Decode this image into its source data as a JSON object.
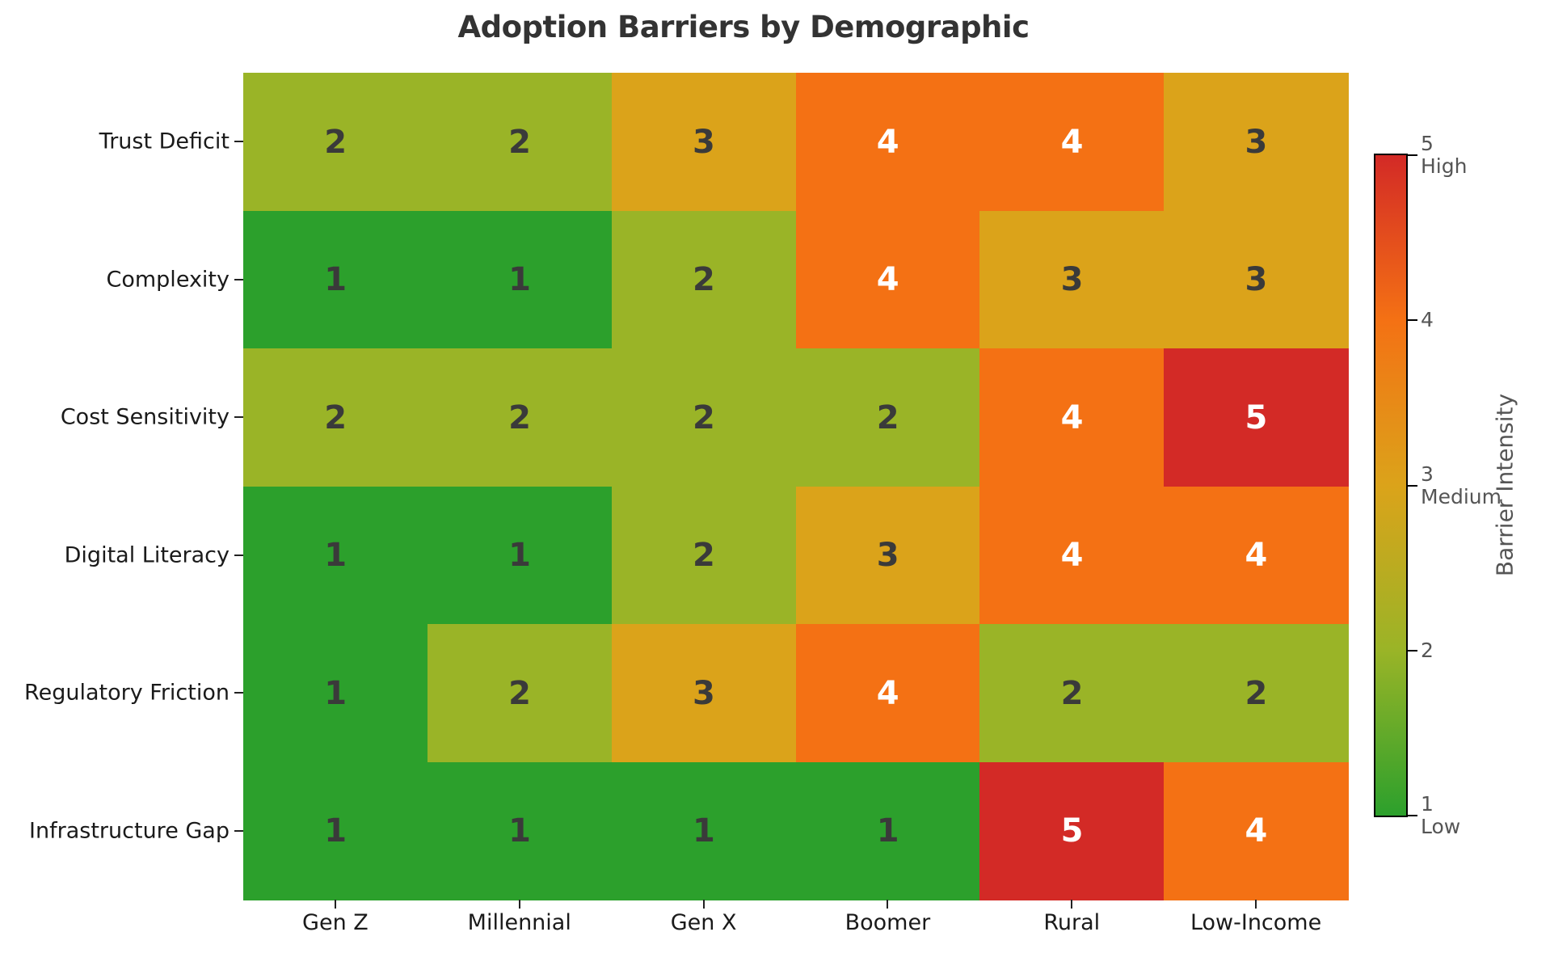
{
  "title": "Adoption Barriers by Demographic",
  "chart_data": {
    "type": "heatmap",
    "title": "Adoption Barriers by Demographic",
    "rows": [
      "Trust Deficit",
      "Complexity",
      "Cost Sensitivity",
      "Digital Literacy",
      "Regulatory Friction",
      "Infrastructure Gap"
    ],
    "columns": [
      "Gen Z",
      "Millennial",
      "Gen X",
      "Boomer",
      "Rural",
      "Low-Income"
    ],
    "values": [
      [
        2,
        2,
        3,
        4,
        4,
        3
      ],
      [
        1,
        1,
        2,
        4,
        3,
        3
      ],
      [
        2,
        2,
        2,
        2,
        4,
        5
      ],
      [
        1,
        1,
        2,
        3,
        4,
        4
      ],
      [
        1,
        2,
        3,
        4,
        2,
        2
      ],
      [
        1,
        1,
        1,
        1,
        5,
        4
      ]
    ],
    "value_colors": {
      "1": "#2ca02c",
      "2": "#9ab427",
      "3": "#dba31a",
      "4": "#f47114",
      "5": "#d32a26"
    },
    "text_colors": {
      "dark": "#3a3a3a",
      "light": "#ffffff"
    },
    "light_text_threshold": 4,
    "colorbar": {
      "label": "Barrier Intensity",
      "range": [
        1,
        5
      ],
      "ticks": [
        {
          "value": 5,
          "label": "5",
          "sublabel": "High"
        },
        {
          "value": 4,
          "label": "4",
          "sublabel": ""
        },
        {
          "value": 3,
          "label": "3",
          "sublabel": "Medium"
        },
        {
          "value": 2,
          "label": "2",
          "sublabel": ""
        },
        {
          "value": 1,
          "label": "1",
          "sublabel": "Low"
        }
      ]
    },
    "grid": false,
    "legend_position": "right"
  }
}
